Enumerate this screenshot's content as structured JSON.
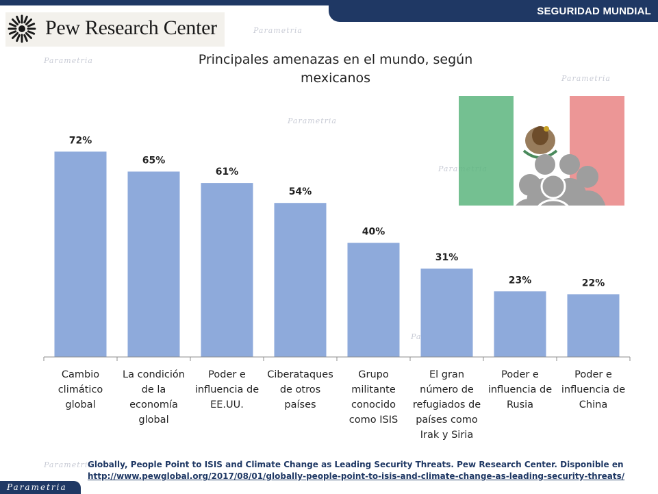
{
  "header": {
    "tag": "SEGURIDAD MUNDIAL"
  },
  "logo": {
    "name": "Pew Research Center"
  },
  "watermark": {
    "brand": "Parametria"
  },
  "chart_data": {
    "type": "bar",
    "title": "Principales amenazas en el mundo, según mexicanos",
    "categories": [
      [
        "Cambio",
        "climático",
        "global"
      ],
      [
        "La condición",
        "de la",
        "economía",
        "global"
      ],
      [
        "Poder e",
        "influencia de",
        "EE.UU."
      ],
      [
        "Ciberataques",
        "de otros",
        "países"
      ],
      [
        "Grupo",
        "militante",
        "conocido",
        "como ISIS"
      ],
      [
        "El gran",
        "número de",
        "refugiados de",
        "países como",
        "Irak y Siria"
      ],
      [
        "Poder e",
        "influencia de",
        "Rusia"
      ],
      [
        "Poder e",
        "influencia de",
        "China"
      ]
    ],
    "values": [
      72,
      65,
      61,
      54,
      40,
      31,
      23,
      22
    ],
    "value_labels": [
      "72%",
      "65%",
      "61%",
      "54%",
      "40%",
      "31%",
      "23%",
      "22%"
    ],
    "ylim": [
      0,
      80
    ],
    "bar_color": "#8eaadb",
    "grid": false,
    "legend": "none"
  },
  "source": {
    "citation": "Globally, People Point to ISIS and Climate Change as Leading Security Threats. Pew Research Center. Disponible en",
    "url": "http://www.pewglobal.org/2017/08/01/globally-people-point-to-isis-and-climate-change-as-leading-security-threats/"
  },
  "colors": {
    "brand": "#1f3864",
    "flag_green": "#5cb57e",
    "flag_red": "#e57373",
    "people_icon": "#9e9e9e"
  },
  "icons": [
    "pew-logo-icon",
    "mexico-flag-icon",
    "group-people-icon"
  ]
}
